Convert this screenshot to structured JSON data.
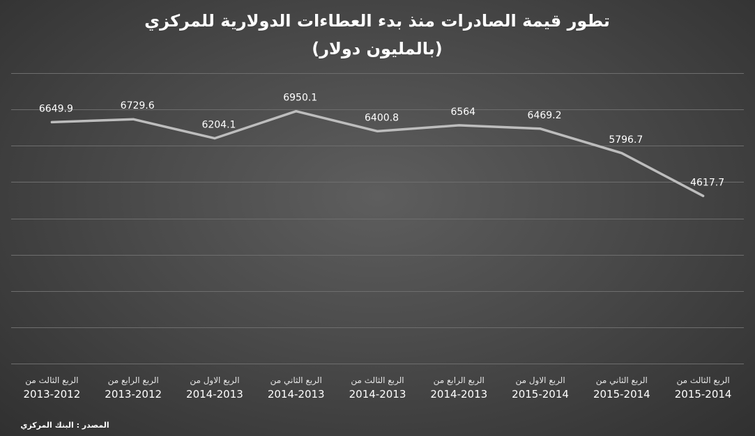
{
  "chart_data": {
    "type": "line",
    "title": "تطور قيمة الصادرات منذ بدء العطاءات الدولارية للمركزي",
    "subtitle": "(بالمليون دولار)",
    "categories": [
      {
        "line1": "الربع الثالث من",
        "line2": "2013-2012"
      },
      {
        "line1": "الربع الرابع من",
        "line2": "2013-2012"
      },
      {
        "line1": "الربع الاول من",
        "line2": "2014-2013"
      },
      {
        "line1": "الربع الثاني من",
        "line2": "2014-2013"
      },
      {
        "line1": "الربع الثالث من",
        "line2": "2014-2013"
      },
      {
        "line1": "الربع الرابع من",
        "line2": "2014-2013"
      },
      {
        "line1": "الربع الاول من",
        "line2": "2015-2014"
      },
      {
        "line1": "الربع الثاني من",
        "line2": "2015-2014"
      },
      {
        "line1": "الربع الثالث من",
        "line2": "2015-2014"
      }
    ],
    "values": [
      6649.9,
      6729.6,
      6204.1,
      6950.1,
      6400.8,
      6564,
      6469.2,
      5796.7,
      4617.7
    ],
    "value_labels": [
      "6649.9",
      "6729.6",
      "6204.1",
      "6950.1",
      "6400.8",
      "6564",
      "6469.2",
      "5796.7",
      "4617.7"
    ],
    "ylim": [
      0,
      8000
    ],
    "grid": true,
    "line_color": "#bdbdbd",
    "source": "المصدر : البنك المركزي"
  }
}
